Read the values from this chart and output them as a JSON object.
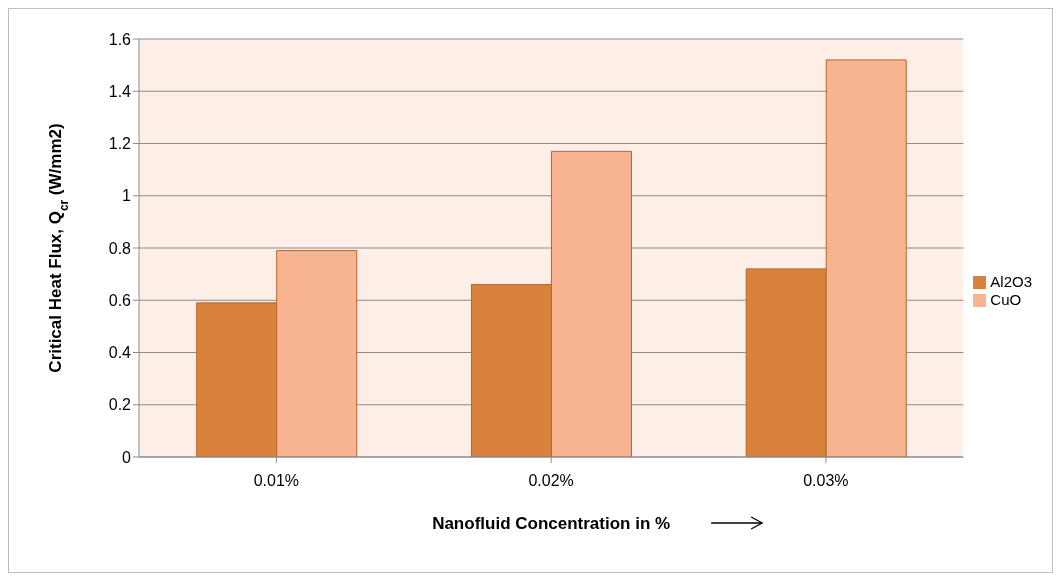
{
  "chart_data": {
    "type": "bar",
    "xlabel": "Nanofluid Concentration in %",
    "ylabel": "Critical Heat Flux, Q$_{cr}$ (W/mm2)",
    "categories": [
      "0.01%",
      "0.02%",
      "0.03%"
    ],
    "series": [
      {
        "name": "Al2O3",
        "color": "#d9823b",
        "values": [
          0.59,
          0.66,
          0.72
        ]
      },
      {
        "name": "CuO",
        "color": "#f8b490",
        "values": [
          0.79,
          1.17,
          1.52
        ]
      }
    ],
    "ylim": [
      0,
      1.6
    ],
    "yticks": [
      0,
      0.2,
      0.4,
      0.6,
      0.8,
      1,
      1.2,
      1.4,
      1.6
    ],
    "grid": "y",
    "legend": "right"
  }
}
